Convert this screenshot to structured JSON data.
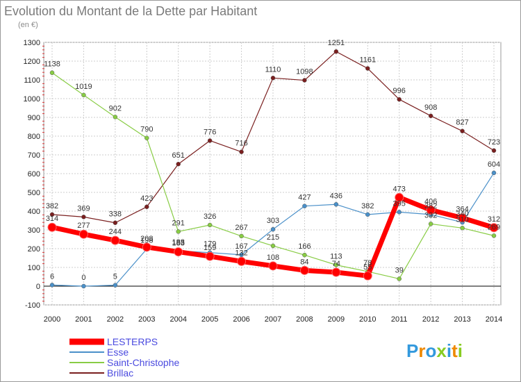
{
  "title": "Evolution du Montant de la Dette par Habitant",
  "subtitle": "(en €)",
  "logo": "Proxiti",
  "colors": {
    "background": "#ffffff",
    "plot_background": "#ffffff",
    "grid": "#cccccc",
    "zero_line": "#000000"
  },
  "chart_data": {
    "type": "line",
    "title": "Evolution du Montant de la Dette par Habitant",
    "ylabel": "(en €)",
    "xlabel": "",
    "x": [
      "2000",
      "2001",
      "2002",
      "2003",
      "2004",
      "2005",
      "2006",
      "2007",
      "2008",
      "2009",
      "2010",
      "2011",
      "2012",
      "2013",
      "2014"
    ],
    "yticks": [
      -100,
      0,
      100,
      200,
      300,
      400,
      500,
      600,
      700,
      800,
      900,
      1000,
      1100,
      1200,
      1300
    ],
    "ylim": [
      -100,
      1300
    ],
    "grid": true,
    "legend_position": "bottom-left",
    "series": [
      {
        "name": "LESTERPS",
        "color": "#ff0000",
        "values": [
          314,
          277,
          244,
          208,
          183,
          159,
          132,
          108,
          84,
          74,
          55,
          473,
          406,
          364,
          312
        ]
      },
      {
        "name": "Esse",
        "color": "#4a90c9",
        "values": [
          6,
          0,
          5,
          198,
          188,
          179,
          167,
          303,
          427,
          436,
          382,
          395,
          382,
          340,
          604
        ]
      },
      {
        "name": "Saint-Christophe",
        "color": "#88cc44",
        "values": [
          1138,
          1019,
          902,
          790,
          291,
          326,
          267,
          215,
          166,
          113,
          78,
          39,
          332,
          310,
          269
        ]
      },
      {
        "name": "Brillac",
        "color": "#7a1f1f",
        "values": [
          382,
          369,
          338,
          423,
          651,
          776,
          716,
          1110,
          1098,
          1251,
          1161,
          996,
          908,
          827,
          723
        ]
      }
    ]
  }
}
